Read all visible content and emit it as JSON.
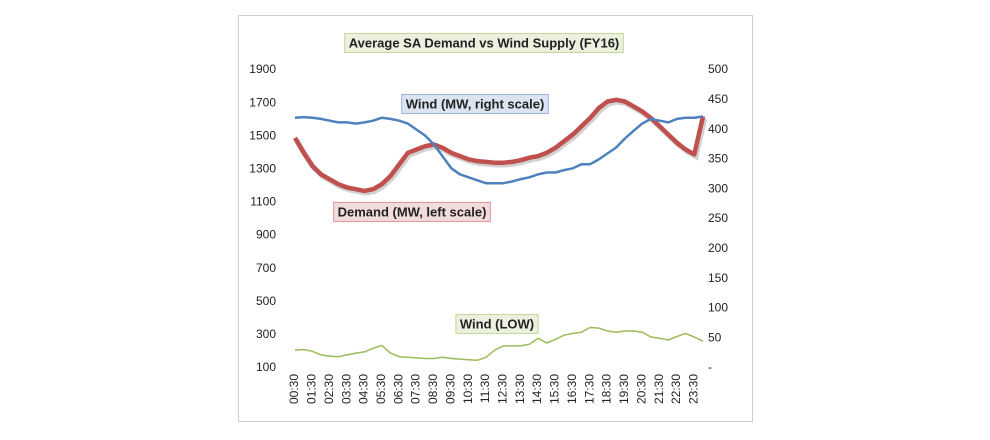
{
  "chart_data": {
    "type": "line",
    "title": "Average SA Demand vs Wind Supply (FY16)",
    "categories": [
      "00:30",
      null,
      "01:30",
      null,
      "02:30",
      null,
      "03:30",
      null,
      "04:30",
      null,
      "05:30",
      null,
      "06:30",
      null,
      "07:30",
      null,
      "08:30",
      null,
      "09:30",
      null,
      "10:30",
      null,
      "11:30",
      null,
      "12:30",
      null,
      "13:30",
      null,
      "14:30",
      null,
      "15:30",
      null,
      "16:30",
      null,
      "17:30",
      null,
      "18:30",
      null,
      "19:30",
      null,
      "20:30",
      null,
      "21:30",
      null,
      "22:30",
      null,
      "23:30",
      null
    ],
    "series": [
      {
        "name": "Demand (MW, left scale)",
        "color": "#c0504d",
        "axis": "y",
        "values": [
          1490,
          1400,
          1320,
          1270,
          1240,
          1210,
          1190,
          1180,
          1170,
          1180,
          1210,
          1260,
          1330,
          1400,
          1420,
          1440,
          1450,
          1430,
          1400,
          1380,
          1360,
          1350,
          1345,
          1340,
          1340,
          1345,
          1355,
          1370,
          1380,
          1400,
          1430,
          1470,
          1510,
          1560,
          1610,
          1670,
          1710,
          1720,
          1710,
          1680,
          1650,
          1610,
          1560,
          1510,
          1460,
          1420,
          1390,
          1620
        ]
      },
      {
        "name": "Wind (MW, right scale)",
        "color": "#4f81bd",
        "axis": "y2",
        "values": [
          420,
          421,
          420,
          418,
          415,
          412,
          412,
          410,
          412,
          415,
          420,
          418,
          415,
          410,
          400,
          390,
          375,
          355,
          335,
          325,
          320,
          315,
          310,
          310,
          310,
          313,
          317,
          320,
          325,
          328,
          328,
          332,
          335,
          342,
          342,
          350,
          360,
          370,
          385,
          398,
          410,
          418,
          415,
          412,
          418,
          420,
          420,
          422
        ]
      },
      {
        "name": "Wind (LOW)",
        "color": "#9bbb59",
        "axis": "y2",
        "values": [
          30,
          31,
          28,
          22,
          20,
          19,
          22,
          25,
          27,
          33,
          38,
          25,
          19,
          18,
          17,
          16,
          16,
          18,
          16,
          15,
          14,
          13,
          18,
          30,
          37,
          37,
          37,
          40,
          50,
          42,
          48,
          55,
          58,
          60,
          68,
          67,
          62,
          60,
          62,
          62,
          60,
          52,
          50,
          47,
          53,
          58,
          52,
          45
        ]
      }
    ],
    "ylim": [
      100,
      1900
    ],
    "yticks": [
      100,
      300,
      500,
      700,
      900,
      1100,
      1300,
      1500,
      1700,
      1900
    ],
    "y2lim": [
      0,
      500
    ],
    "y2ticks": [
      {
        "value": 0,
        "label": "-"
      },
      50,
      100,
      150,
      200,
      250,
      300,
      350,
      400,
      450,
      500
    ],
    "grid": false
  }
}
